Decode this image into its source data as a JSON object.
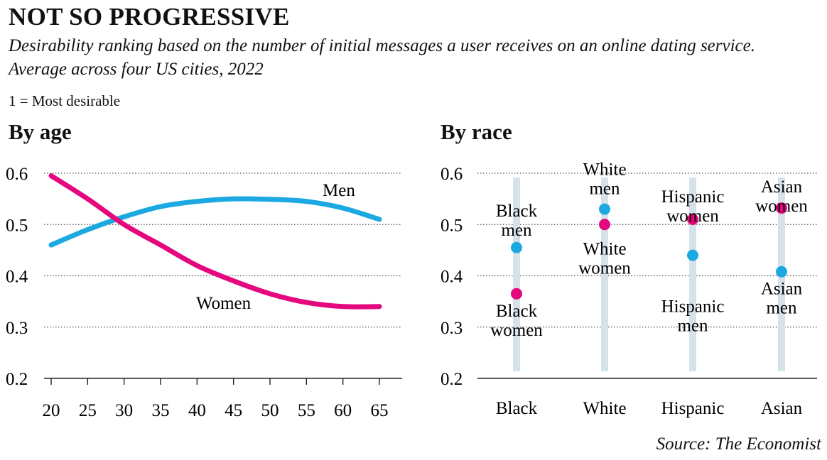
{
  "title": "NOT SO PROGRESSIVE",
  "subtitle": "Desirability ranking based on the number of initial messages a user receives on an online dating service. Average across four US cities, 2022",
  "note": "1 = Most desirable",
  "source": "Source: The Economist",
  "colors": {
    "men": "#1ca9e1",
    "women": "#e5077d",
    "band": "#d6e2ea",
    "grid": "#555555"
  },
  "chart_data": [
    {
      "type": "line",
      "title": "By age",
      "xlabel": "",
      "ylabel": "",
      "xlim": [
        20,
        65
      ],
      "ylim": [
        0.2,
        0.6
      ],
      "xticks": [
        20,
        25,
        30,
        35,
        40,
        45,
        50,
        55,
        60,
        65
      ],
      "yticks": [
        0.2,
        0.3,
        0.4,
        0.5,
        0.6
      ],
      "grid": true,
      "series": [
        {
          "name": "Men",
          "x": [
            20,
            25,
            30,
            35,
            40,
            45,
            50,
            55,
            60,
            65
          ],
          "y": [
            0.46,
            0.49,
            0.515,
            0.535,
            0.545,
            0.55,
            0.549,
            0.545,
            0.532,
            0.51
          ]
        },
        {
          "name": "Women",
          "x": [
            20,
            25,
            30,
            35,
            40,
            45,
            50,
            55,
            60,
            65
          ],
          "y": [
            0.595,
            0.55,
            0.5,
            0.46,
            0.42,
            0.39,
            0.365,
            0.348,
            0.34,
            0.34
          ]
        }
      ]
    },
    {
      "type": "scatter",
      "title": "By race",
      "xlabel": "",
      "ylabel": "",
      "ylim": [
        0.2,
        0.6
      ],
      "yticks": [
        0.2,
        0.3,
        0.4,
        0.5,
        0.6
      ],
      "grid": true,
      "categories": [
        "Black",
        "White",
        "Hispanic",
        "Asian"
      ],
      "series": [
        {
          "name": "Men",
          "values": [
            0.455,
            0.53,
            0.44,
            0.408
          ],
          "labels": [
            "Black men",
            "White men",
            "Hispanic men",
            "Asian men"
          ]
        },
        {
          "name": "Women",
          "values": [
            0.365,
            0.5,
            0.51,
            0.532
          ],
          "labels": [
            "Black women",
            "White women",
            "Hispanic women",
            "Asian women"
          ]
        }
      ]
    }
  ]
}
